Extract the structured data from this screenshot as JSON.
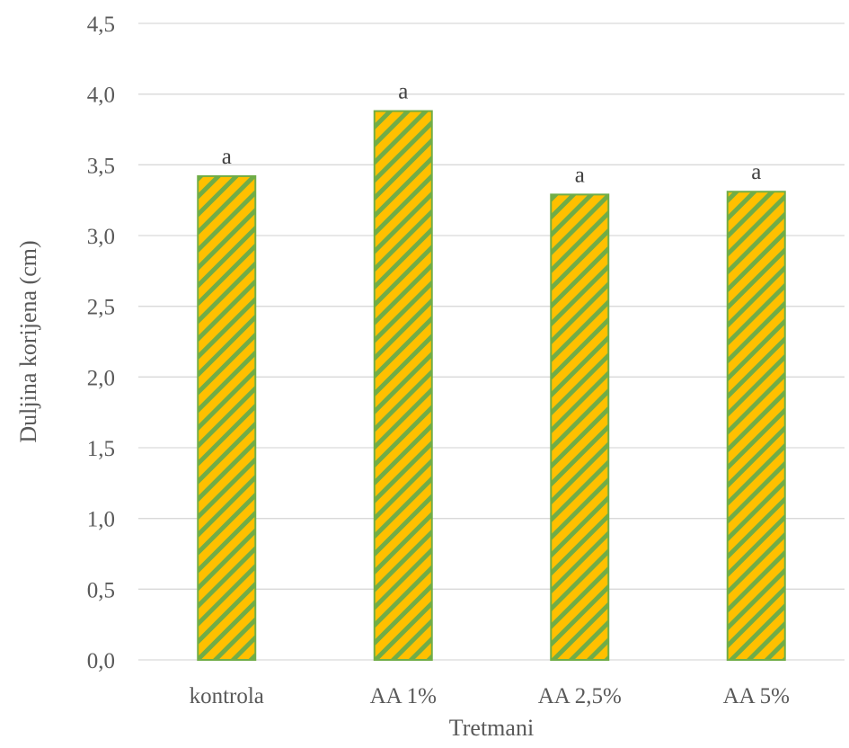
{
  "chart_data": {
    "type": "bar",
    "title": "",
    "xlabel": "Tretmani",
    "ylabel": "Duljina korijena (cm)",
    "categories": [
      "kontrola",
      "AA 1%",
      "AA 2,5%",
      "AA 5%"
    ],
    "values": [
      3.42,
      3.88,
      3.29,
      3.31
    ],
    "data_labels": [
      "a",
      "a",
      "a",
      "a"
    ],
    "ylim": [
      0,
      4.5
    ],
    "yticks": [
      0,
      0.5,
      1.0,
      1.5,
      2.0,
      2.5,
      3.0,
      3.5,
      4.0,
      4.5
    ],
    "ytick_labels": [
      "0,0",
      "0,5",
      "1,0",
      "1,5",
      "2,0",
      "2,5",
      "3,0",
      "3,5",
      "4,0",
      "4,5"
    ],
    "grid": true,
    "legend": "none",
    "colors": {
      "bar_fill": "#ffc000",
      "bar_stripe": "#70ad47",
      "bar_border": "#70ad47",
      "gridline": "#d9d9d9",
      "text": "#595959"
    }
  }
}
